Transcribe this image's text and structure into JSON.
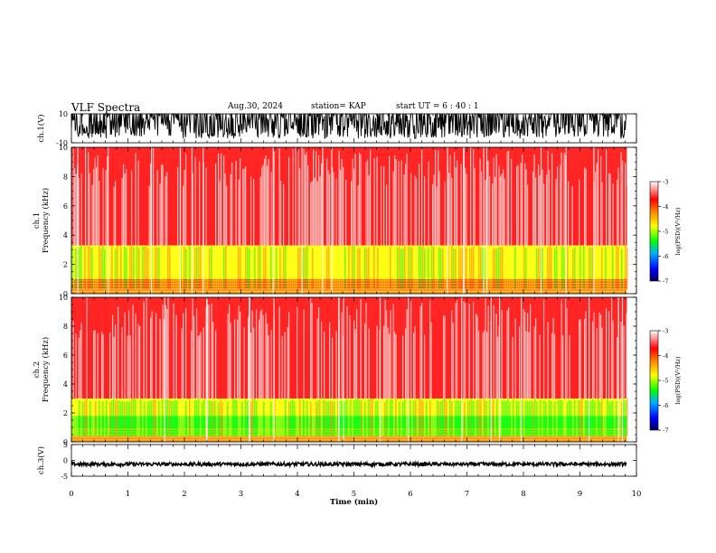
{
  "header": {
    "title": "VLF Spectra",
    "date": "Aug.30, 2024",
    "station": "station= KAP",
    "start": "start  UT  =   6  : 40 : 1"
  },
  "chart_data": [
    {
      "type": "line",
      "panel": "ch1-waveform",
      "ylabel": "ch.1(V)",
      "ylim": [
        -10,
        10
      ],
      "yticks": [
        10,
        -10
      ],
      "xlim": [
        0,
        10
      ],
      "x_data_end": 9.83,
      "envelope": "dense oscillation mostly spanning about -7 to +10 V, frequent clipping at +10 V"
    },
    {
      "type": "heatmap",
      "panel": "ch1-spectrogram",
      "ylabel": "ch.1\nFrequency  (kHz)",
      "ylim": [
        0,
        10
      ],
      "yticks": [
        0,
        2,
        4,
        6,
        8,
        10
      ],
      "xlim": [
        0,
        10
      ],
      "x_data_end": 9.83,
      "colorbar": {
        "label": "log(PSD)(V²/Hz)",
        "range": [
          -7,
          -3
        ],
        "ticks": [
          -3,
          -4,
          -5,
          -6,
          -7
        ]
      },
      "bands": [
        {
          "freq_khz": [
            0.0,
            0.3
          ],
          "level": -4.2
        },
        {
          "freq_khz": [
            0.3,
            1.0
          ],
          "level": -3.6
        },
        {
          "freq_khz": [
            1.0,
            3.3
          ],
          "level": -4.6
        },
        {
          "freq_khz": [
            3.3,
            10.0
          ],
          "level": -3.5
        }
      ]
    },
    {
      "type": "heatmap",
      "panel": "ch2-spectrogram",
      "ylabel": "ch.2\nFrequency  (kHz)",
      "ylim": [
        0,
        10
      ],
      "yticks": [
        0,
        2,
        4,
        6,
        8,
        10
      ],
      "xlim": [
        0,
        10
      ],
      "x_data_end": 9.83,
      "colorbar": {
        "label": "log(PSD)(V²/Hz)",
        "range": [
          -7,
          -3
        ],
        "ticks": [
          -3,
          -4,
          -5,
          -6,
          -7
        ]
      },
      "bands": [
        {
          "freq_khz": [
            0.0,
            0.4
          ],
          "level": -4.3
        },
        {
          "freq_khz": [
            0.4,
            1.8
          ],
          "level": -5.2
        },
        {
          "freq_khz": [
            1.8,
            3.0
          ],
          "level": -4.4
        },
        {
          "freq_khz": [
            3.0,
            10.0
          ],
          "level": -3.7
        }
      ]
    },
    {
      "type": "line",
      "panel": "ch3-waveform",
      "ylabel": "ch.3(V)",
      "ylim": [
        -5,
        5
      ],
      "yticks": [
        5,
        0,
        -5
      ],
      "xlim": [
        0,
        10
      ],
      "x_data_end": 9.83,
      "envelope": "narrow band near -1.2 V"
    }
  ],
  "xaxis": {
    "label": "Time  (min)",
    "ticks": [
      "0",
      "1",
      "2",
      "3",
      "4",
      "5",
      "6",
      "7",
      "8",
      "9",
      "10"
    ]
  },
  "colors": {
    "low": "#000080",
    "mid_low": "#00ff00",
    "mid": "#ffff00",
    "high": "#ff0000",
    "max": "#ffffff"
  }
}
